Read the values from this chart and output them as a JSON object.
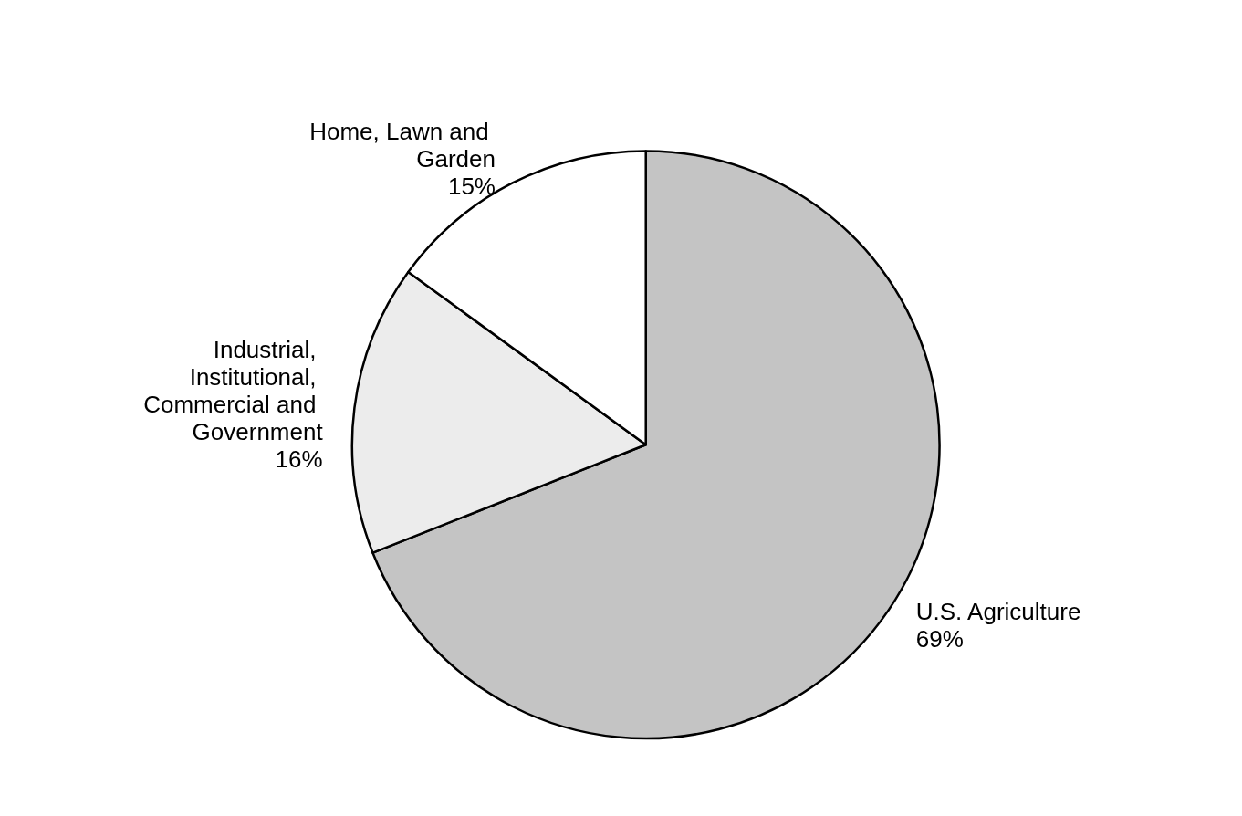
{
  "chart_data": {
    "type": "pie",
    "categories": [
      "U.S. Agriculture",
      "Industrial, Institutional, Commercial and Government",
      "Home, Lawn and Garden"
    ],
    "values": [
      69,
      16,
      15
    ],
    "value_labels": [
      "69%",
      "16%",
      "15%"
    ],
    "colors": [
      "#c4c4c4",
      "#ececec",
      "#ffffff"
    ],
    "legend": false
  }
}
